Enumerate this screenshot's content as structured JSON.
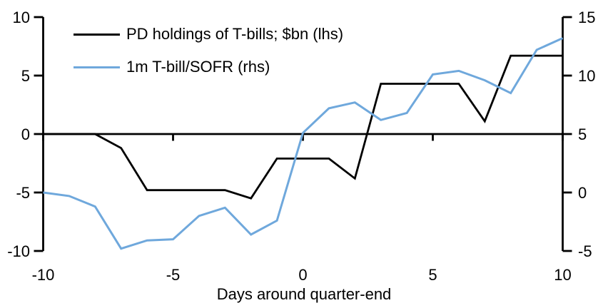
{
  "chart_data": {
    "type": "line",
    "title": "",
    "xlabel": "Days around quarter-end",
    "grid": false,
    "legend_position": "top-left",
    "x": [
      -10,
      -9,
      -8,
      -7,
      -6,
      -5,
      -4,
      -3,
      -2,
      -1,
      0,
      1,
      2,
      3,
      4,
      5,
      6,
      7,
      8,
      9,
      10
    ],
    "x_axis": {
      "min": -10,
      "max": 10,
      "ticks": [
        -10,
        -5,
        0,
        5,
        10
      ]
    },
    "left_axis": {
      "min": -10,
      "max": 10,
      "ticks": [
        10,
        5,
        0,
        -5,
        -10
      ]
    },
    "right_axis": {
      "min": -5,
      "max": 15,
      "ticks": [
        15,
        10,
        5,
        0,
        -5
      ]
    },
    "series": [
      {
        "name": "PD holdings of T-bills; $bn (lhs)",
        "axis": "lhs",
        "color": "#000000",
        "values": [
          0,
          0,
          0,
          -1.2,
          -4.8,
          -4.8,
          -4.8,
          -4.8,
          -5.5,
          -2.1,
          -2.1,
          -2.1,
          -3.8,
          4.3,
          4.3,
          4.3,
          4.3,
          1.1,
          6.7,
          6.7,
          6.7
        ]
      },
      {
        "name": "1m T-bill/SOFR (rhs)",
        "axis": "rhs",
        "color": "#6fa8dc",
        "values": [
          0,
          -0.3,
          -1.2,
          -4.8,
          -4.1,
          -4.0,
          -2.0,
          -1.3,
          -3.6,
          -2.4,
          5.1,
          7.2,
          7.7,
          6.2,
          6.8,
          10.1,
          10.4,
          9.6,
          8.5,
          12.2,
          13.2
        ]
      }
    ]
  }
}
